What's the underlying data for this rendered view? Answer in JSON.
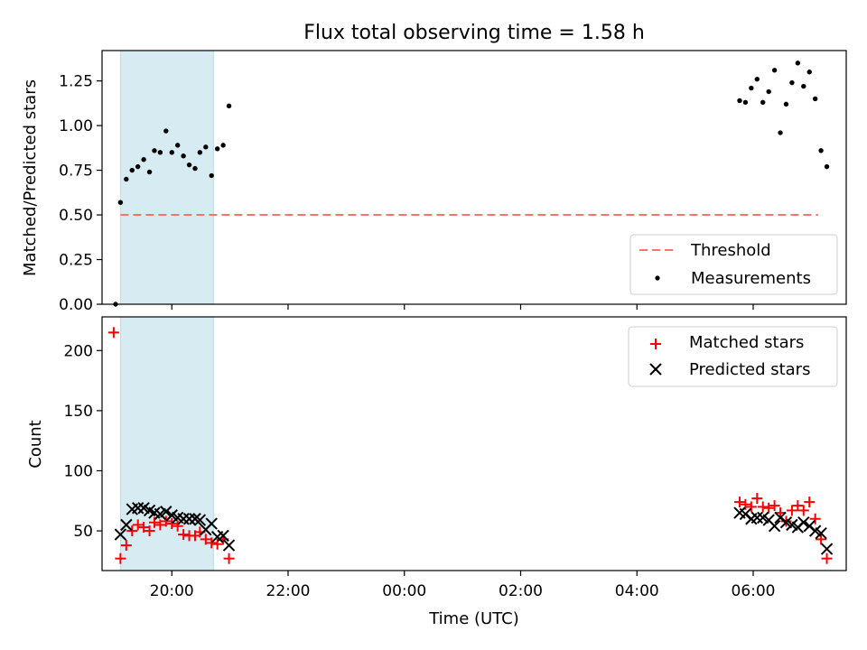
{
  "chart_data": [
    {
      "type": "scatter",
      "title": "Flux total observing time = 1.58 h",
      "xlabel": "",
      "ylabel": "Matched/Predicted stars",
      "xlim": [
        "18:48",
        "07:36"
      ],
      "ylim": [
        0.0,
        1.42
      ],
      "yticks": [
        "0.00",
        "0.25",
        "0.50",
        "0.75",
        "1.00",
        "1.25"
      ],
      "shaded_interval": [
        "19:07",
        "20:43"
      ],
      "shaded_color": "#add8e6",
      "threshold": {
        "name": "Threshold",
        "value": 0.5,
        "x": [
          "19:07",
          "07:07"
        ],
        "color": "#ff7070",
        "style": "dashed"
      },
      "series": [
        {
          "name": "Measurements",
          "marker": "dot",
          "color": "#000000",
          "points": [
            [
              "19:02",
              0.0
            ],
            [
              "19:07",
              0.57
            ],
            [
              "19:13",
              0.7
            ],
            [
              "19:19",
              0.75
            ],
            [
              "19:25",
              0.77
            ],
            [
              "19:31",
              0.81
            ],
            [
              "19:37",
              0.74
            ],
            [
              "19:42",
              0.86
            ],
            [
              "19:48",
              0.85
            ],
            [
              "19:54",
              0.97
            ],
            [
              "20:00",
              0.85
            ],
            [
              "20:06",
              0.89
            ],
            [
              "20:12",
              0.83
            ],
            [
              "20:18",
              0.78
            ],
            [
              "20:24",
              0.76
            ],
            [
              "20:29",
              0.85
            ],
            [
              "20:35",
              0.88
            ],
            [
              "20:41",
              0.72
            ],
            [
              "20:47",
              0.87
            ],
            [
              "20:53",
              0.89
            ],
            [
              "20:59",
              1.11
            ],
            [
              "05:46",
              1.14
            ],
            [
              "05:52",
              1.13
            ],
            [
              "05:58",
              1.21
            ],
            [
              "06:04",
              1.26
            ],
            [
              "06:10",
              1.13
            ],
            [
              "06:16",
              1.19
            ],
            [
              "06:22",
              1.31
            ],
            [
              "06:28",
              0.96
            ],
            [
              "06:34",
              1.12
            ],
            [
              "06:40",
              1.24
            ],
            [
              "06:46",
              1.35
            ],
            [
              "06:52",
              1.22
            ],
            [
              "06:58",
              1.3
            ],
            [
              "07:04",
              1.15
            ],
            [
              "07:10",
              0.86
            ],
            [
              "07:16",
              0.77
            ]
          ]
        }
      ],
      "legend": {
        "position": "lower-right",
        "entries": [
          "Threshold",
          "Measurements"
        ]
      }
    },
    {
      "type": "scatter",
      "title": "",
      "xlabel": "Time (UTC)",
      "ylabel": "Count",
      "xlim": [
        "18:48",
        "07:36"
      ],
      "ylim": [
        17,
        228
      ],
      "yticks": [
        "50",
        "100",
        "150",
        "200"
      ],
      "xticks": [
        "20:00",
        "22:00",
        "00:00",
        "02:00",
        "04:00",
        "06:00"
      ],
      "shaded_interval": [
        "19:07",
        "20:43"
      ],
      "series": [
        {
          "name": "Matched stars",
          "marker": "plus",
          "color": "#ff0000",
          "points": [
            [
              "19:00",
              215
            ],
            [
              "19:07",
              27
            ],
            [
              "19:13",
              38
            ],
            [
              "19:19",
              50
            ],
            [
              "19:25",
              55
            ],
            [
              "19:31",
              53
            ],
            [
              "19:37",
              50
            ],
            [
              "19:42",
              57
            ],
            [
              "19:48",
              55
            ],
            [
              "19:54",
              58
            ],
            [
              "20:00",
              56
            ],
            [
              "20:06",
              54
            ],
            [
              "20:12",
              47
            ],
            [
              "20:18",
              46
            ],
            [
              "20:24",
              46
            ],
            [
              "20:29",
              49
            ],
            [
              "20:35",
              43
            ],
            [
              "20:41",
              40
            ],
            [
              "20:47",
              39
            ],
            [
              "20:53",
              43
            ],
            [
              "20:59",
              27
            ],
            [
              "05:46",
              74
            ],
            [
              "05:52",
              72
            ],
            [
              "05:58",
              70
            ],
            [
              "06:04",
              77
            ],
            [
              "06:10",
              70
            ],
            [
              "06:16",
              69
            ],
            [
              "06:22",
              71
            ],
            [
              "06:28",
              65
            ],
            [
              "06:34",
              58
            ],
            [
              "06:40",
              67
            ],
            [
              "06:46",
              71
            ],
            [
              "06:52",
              67
            ],
            [
              "06:58",
              74
            ],
            [
              "07:04",
              60
            ],
            [
              "07:10",
              43
            ],
            [
              "07:16",
              27
            ]
          ]
        },
        {
          "name": "Predicted stars",
          "marker": "x",
          "color": "#000000",
          "points": [
            [
              "19:07",
              47
            ],
            [
              "19:13",
              55
            ],
            [
              "19:19",
              68
            ],
            [
              "19:25",
              69
            ],
            [
              "19:31",
              69
            ],
            [
              "19:37",
              67
            ],
            [
              "19:42",
              65
            ],
            [
              "19:48",
              64
            ],
            [
              "19:54",
              66
            ],
            [
              "20:00",
              63
            ],
            [
              "20:06",
              61
            ],
            [
              "20:12",
              60
            ],
            [
              "20:18",
              60
            ],
            [
              "20:24",
              60
            ],
            [
              "20:29",
              59
            ],
            [
              "20:35",
              51
            ],
            [
              "20:41",
              56
            ],
            [
              "20:47",
              45
            ],
            [
              "20:53",
              46
            ],
            [
              "20:59",
              38
            ],
            [
              "05:46",
              65
            ],
            [
              "05:52",
              64
            ],
            [
              "05:58",
              60
            ],
            [
              "06:04",
              61
            ],
            [
              "06:10",
              61
            ],
            [
              "06:16",
              59
            ],
            [
              "06:22",
              54
            ],
            [
              "06:28",
              61
            ],
            [
              "06:34",
              57
            ],
            [
              "06:40",
              55
            ],
            [
              "06:46",
              53
            ],
            [
              "06:52",
              57
            ],
            [
              "06:58",
              54
            ],
            [
              "07:04",
              50
            ],
            [
              "07:10",
              48
            ],
            [
              "07:16",
              35
            ]
          ]
        }
      ],
      "legend": {
        "position": "upper-right",
        "entries": [
          "Matched stars",
          "Predicted stars"
        ]
      }
    }
  ]
}
